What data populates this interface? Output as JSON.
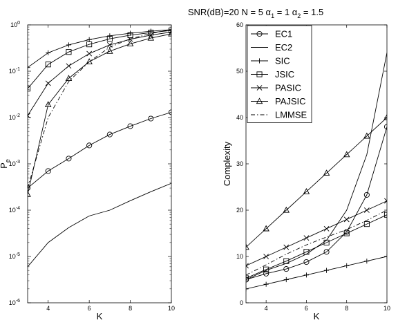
{
  "figure": {
    "title_parts": {
      "prefix": "SNR(dB)=20  N = 5  α",
      "a1_sub": "1",
      "a1_eq": " = 1 α",
      "a2_sub": "2",
      "a2_eq": " = 1.5"
    }
  },
  "chart_data": [
    {
      "type": "line",
      "yscale": "log",
      "xlabel": "K",
      "ylabel": "P",
      "ylabel_sub": "e",
      "xlim": [
        3,
        10
      ],
      "ylim": [
        1e-06,
        1
      ],
      "xticks": [
        4,
        6,
        8,
        10
      ],
      "xtick_labels": [
        "4",
        "6",
        "8",
        "10"
      ],
      "ytick_labels": [
        {
          "mant": "10",
          "exp": "-6",
          "value": 1e-06
        },
        {
          "mant": "10",
          "exp": "-5",
          "value": 1e-05
        },
        {
          "mant": "10",
          "exp": "-4",
          "value": 0.0001
        },
        {
          "mant": "10",
          "exp": "-3",
          "value": 0.001
        },
        {
          "mant": "10",
          "exp": "-2",
          "value": 0.01
        },
        {
          "mant": "10",
          "exp": "-1",
          "value": 0.1
        },
        {
          "mant": "10",
          "exp": "0",
          "value": 1
        }
      ],
      "series": [
        {
          "name": "EC1",
          "marker": "circle",
          "dash": "solid",
          "x": [
            3,
            4,
            5,
            6,
            7,
            8,
            9,
            10
          ],
          "y": [
            0.0003,
            0.0007,
            0.0013,
            0.0025,
            0.0043,
            0.0065,
            0.0095,
            0.013
          ]
        },
        {
          "name": "EC2",
          "marker": "none",
          "dash": "solid",
          "x": [
            3,
            4,
            5,
            6,
            7,
            8,
            9,
            10
          ],
          "y": [
            6e-06,
            2e-05,
            4.2e-05,
            7.5e-05,
            0.0001,
            0.00016,
            0.00025,
            0.00038
          ]
        },
        {
          "name": "SIC",
          "marker": "plus",
          "dash": "solid",
          "x": [
            3,
            4,
            5,
            6,
            7,
            8,
            9,
            10
          ],
          "y": [
            0.12,
            0.25,
            0.37,
            0.48,
            0.58,
            0.66,
            0.73,
            0.79
          ]
        },
        {
          "name": "JSIC",
          "marker": "square",
          "dash": "solid",
          "x": [
            3,
            4,
            5,
            6,
            7,
            8,
            9,
            10
          ],
          "y": [
            0.042,
            0.14,
            0.26,
            0.38,
            0.5,
            0.6,
            0.68,
            0.76
          ]
        },
        {
          "name": "PASIC",
          "marker": "x",
          "dash": "solid",
          "x": [
            3,
            4,
            5,
            6,
            7,
            8,
            9,
            10
          ],
          "y": [
            0.011,
            0.055,
            0.13,
            0.24,
            0.37,
            0.49,
            0.6,
            0.7
          ]
        },
        {
          "name": "PAJSIC",
          "marker": "triangle",
          "dash": "solid",
          "x": [
            3,
            4,
            5,
            6,
            7,
            8,
            9,
            10
          ],
          "y": [
            0.00022,
            0.019,
            0.07,
            0.16,
            0.27,
            0.39,
            0.52,
            0.64
          ]
        },
        {
          "name": "LMMSE",
          "marker": "none",
          "dash": "dashdot",
          "x": [
            3,
            4,
            5,
            6,
            7,
            8,
            9,
            10
          ],
          "y": [
            0.0003,
            0.01,
            0.06,
            0.16,
            0.33,
            0.5,
            0.65,
            0.8
          ]
        }
      ]
    },
    {
      "type": "line",
      "yscale": "linear",
      "xlabel": "K",
      "ylabel": "Complexity",
      "xlim": [
        3,
        10
      ],
      "ylim": [
        0,
        60
      ],
      "xticks": [
        4,
        6,
        8,
        10
      ],
      "xtick_labels": [
        "4",
        "6",
        "8",
        "10"
      ],
      "yticks": [
        0,
        10,
        20,
        30,
        40,
        50,
        60
      ],
      "ytick_labels": [
        "0",
        "10",
        "20",
        "30",
        "40",
        "50",
        "60"
      ],
      "legend": {
        "position": "top-left"
      },
      "series": [
        {
          "name": "EC1",
          "marker": "circle",
          "dash": "solid",
          "x": [
            3,
            4,
            5,
            6,
            7,
            8,
            9,
            10
          ],
          "y": [
            5,
            6.3,
            7.3,
            8.8,
            11,
            15.3,
            23.3,
            38
          ]
        },
        {
          "name": "EC2",
          "marker": "none",
          "dash": "solid",
          "x": [
            3,
            4,
            5,
            6,
            7,
            8,
            9,
            10
          ],
          "y": [
            5,
            7,
            8.5,
            10.5,
            13.5,
            20,
            32,
            54
          ]
        },
        {
          "name": "SIC",
          "marker": "plus",
          "dash": "solid",
          "x": [
            3,
            4,
            5,
            6,
            7,
            8,
            9,
            10
          ],
          "y": [
            3,
            4,
            5,
            6,
            7,
            8,
            9,
            10
          ]
        },
        {
          "name": "JSIC",
          "marker": "square",
          "dash": "solid",
          "x": [
            3,
            4,
            5,
            6,
            7,
            8,
            9,
            10
          ],
          "y": [
            5.3,
            7.2,
            9,
            11,
            13,
            15,
            17,
            19
          ]
        },
        {
          "name": "PASIC",
          "marker": "x",
          "dash": "solid",
          "x": [
            3,
            4,
            5,
            6,
            7,
            8,
            9,
            10
          ],
          "y": [
            8,
            10,
            12,
            14,
            16,
            18,
            20,
            22
          ]
        },
        {
          "name": "PAJSIC",
          "marker": "triangle",
          "dash": "solid",
          "x": [
            3,
            4,
            5,
            6,
            7,
            8,
            9,
            10
          ],
          "y": [
            12,
            16,
            20,
            24,
            28,
            32,
            36,
            40
          ]
        },
        {
          "name": "LMMSE",
          "marker": "none",
          "dash": "dashdot",
          "x": [
            3,
            4,
            5,
            6,
            7,
            8,
            9,
            10
          ],
          "y": [
            6,
            8.2,
            10.5,
            12.5,
            14.2,
            15.8,
            17.8,
            20
          ]
        }
      ]
    }
  ]
}
